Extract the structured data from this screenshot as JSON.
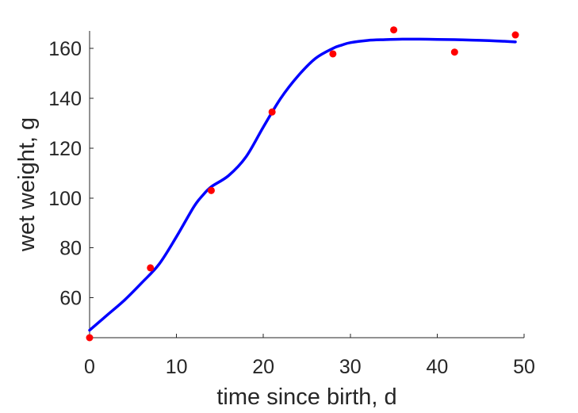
{
  "chart_data": {
    "type": "line",
    "xlabel": "time since birth, d",
    "ylabel": "wet weight, g",
    "xlim": [
      0,
      50
    ],
    "ylim": [
      44,
      167
    ],
    "xticks": [
      0,
      10,
      20,
      30,
      40,
      50
    ],
    "yticks": [
      60,
      80,
      100,
      120,
      140,
      160
    ],
    "grid": false,
    "series": [
      {
        "kind": "points",
        "color": "#ff0000",
        "x": [
          0,
          7,
          14,
          21,
          28,
          35,
          42,
          49
        ],
        "y": [
          44,
          72,
          103,
          134.5,
          157.8,
          167.4,
          158.5,
          165.4
        ]
      },
      {
        "kind": "line",
        "color": "#0000ff",
        "x": [
          0,
          2,
          4,
          6,
          8,
          10,
          12,
          13,
          14,
          16,
          18,
          20,
          22,
          24,
          26,
          28,
          29,
          30,
          32,
          34,
          36,
          38,
          40,
          42,
          44,
          46,
          48,
          49
        ],
        "y": [
          47,
          53,
          59,
          66,
          73.5,
          84.5,
          96.5,
          101,
          104.5,
          109,
          116.5,
          128.5,
          140,
          149,
          156,
          160,
          161.3,
          162.3,
          163.2,
          163.5,
          163.7,
          163.7,
          163.6,
          163.5,
          163.3,
          163.1,
          162.8,
          162.6
        ]
      }
    ]
  }
}
